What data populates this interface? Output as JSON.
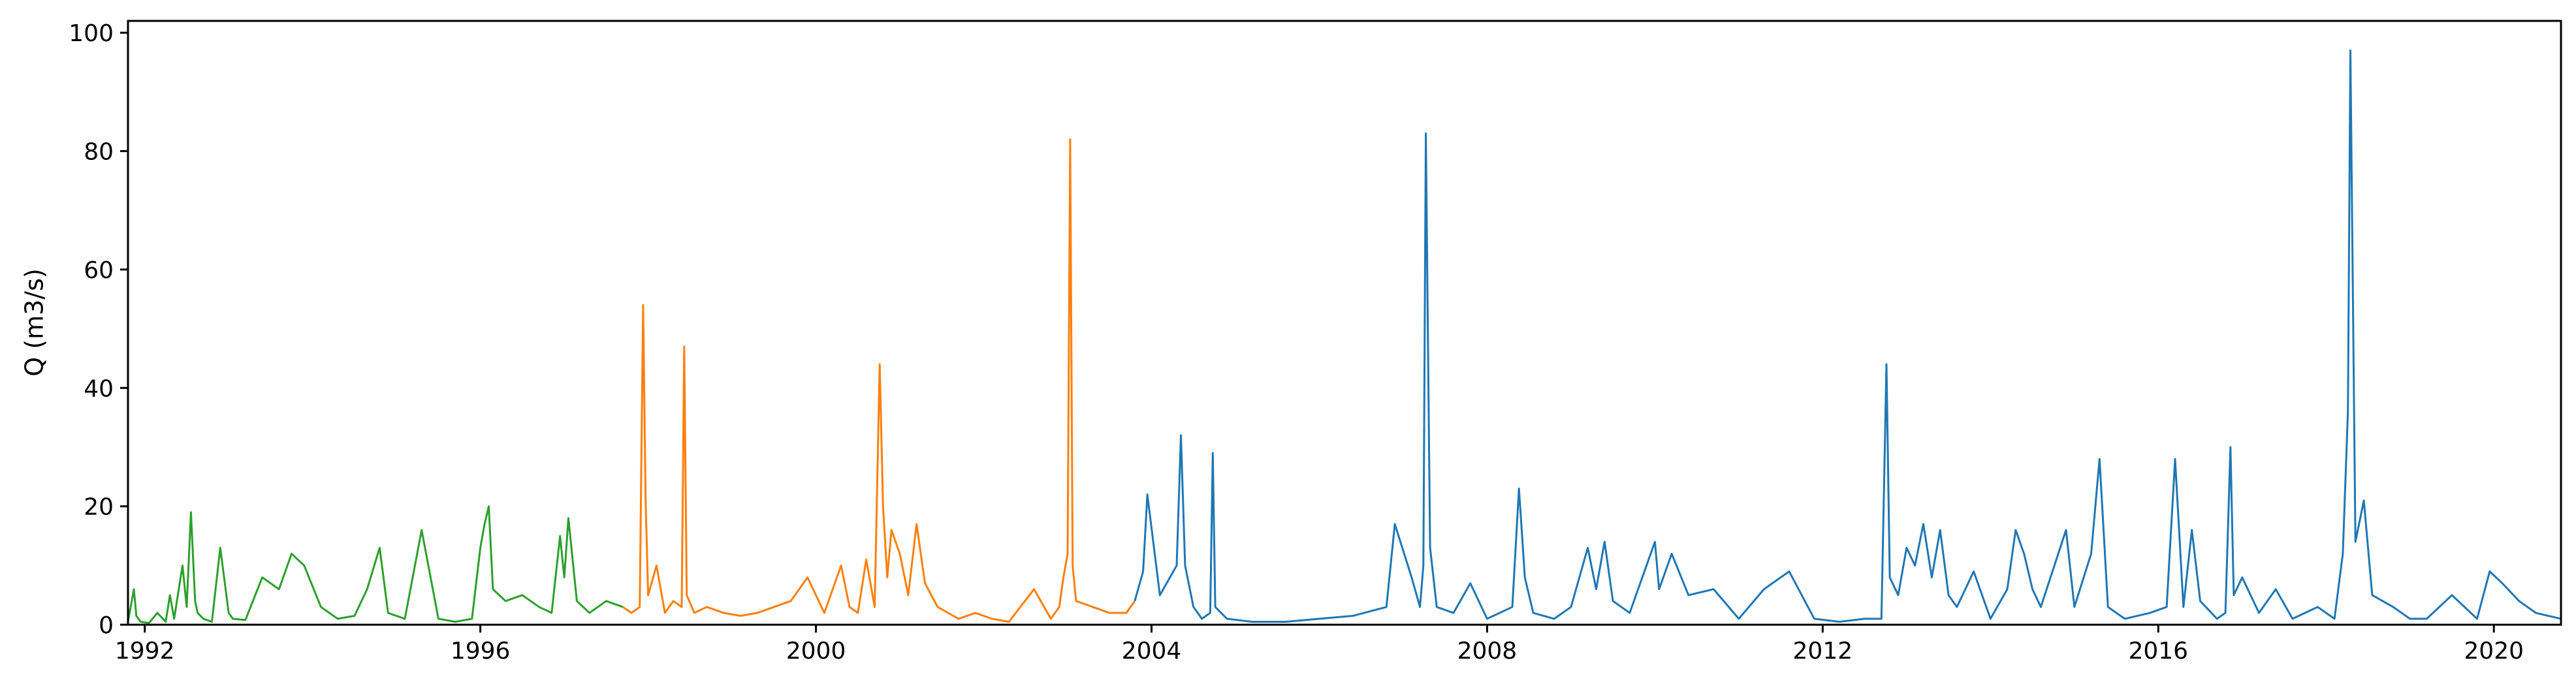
{
  "chart_data": {
    "type": "line",
    "title": "",
    "xlabel": "",
    "ylabel": "Q (m3/s)",
    "xlim": [
      1991.8,
      2020.8
    ],
    "ylim": [
      0,
      102
    ],
    "x_ticks": [
      1992,
      1996,
      2000,
      2004,
      2008,
      2012,
      2016,
      2020
    ],
    "x_tick_labels": [
      "1992",
      "1996",
      "2000",
      "2004",
      "2008",
      "2012",
      "2016",
      "2020"
    ],
    "y_ticks": [
      0,
      20,
      40,
      60,
      80,
      100
    ],
    "y_tick_labels": [
      "0",
      "20",
      "40",
      "60",
      "80",
      "100"
    ],
    "grid": false,
    "legend": "none",
    "series": [
      {
        "color": "#2ca02c",
        "x": [
          1991.8,
          1991.87,
          1991.9,
          1991.95,
          1992.05,
          1992.15,
          1992.25,
          1992.3,
          1992.35,
          1992.45,
          1992.5,
          1992.55,
          1992.6,
          1992.63,
          1992.7,
          1992.8,
          1992.9,
          1993.0,
          1993.05,
          1993.2,
          1993.4,
          1993.6,
          1993.75,
          1993.9,
          1994.1,
          1994.3,
          1994.5,
          1994.65,
          1994.8,
          1994.9,
          1995.1,
          1995.3,
          1995.5,
          1995.7,
          1995.9,
          1996.0,
          1996.05,
          1996.1,
          1996.15,
          1996.3,
          1996.5,
          1996.7,
          1996.85,
          1996.95,
          1997.0,
          1997.05,
          1997.15,
          1997.3,
          1997.5,
          1997.7
        ],
        "y": [
          0.5,
          6,
          1.5,
          0.5,
          0.3,
          2,
          0.5,
          5,
          1,
          10,
          3,
          19,
          4,
          2,
          1,
          0.5,
          13,
          2,
          1,
          0.8,
          8,
          6,
          12,
          10,
          3,
          1,
          1.5,
          6,
          13,
          2,
          1,
          16,
          1,
          0.5,
          1,
          13,
          17,
          20,
          6,
          4,
          5,
          3,
          2,
          15,
          8,
          18,
          4,
          2,
          4,
          3
        ]
      },
      {
        "color": "#ff7f0e",
        "x": [
          1997.7,
          1997.8,
          1997.9,
          1997.94,
          1997.97,
          1998.0,
          1998.1,
          1998.2,
          1998.3,
          1998.4,
          1998.43,
          1998.46,
          1998.55,
          1998.7,
          1998.9,
          1999.1,
          1999.3,
          1999.5,
          1999.7,
          1999.9,
          2000.1,
          2000.3,
          2000.4,
          2000.5,
          2000.6,
          2000.7,
          2000.76,
          2000.8,
          2000.85,
          2000.9,
          2001.0,
          2001.1,
          2001.2,
          2001.3,
          2001.45,
          2001.7,
          2001.9,
          2002.1,
          2002.3,
          2002.6,
          2002.8,
          2002.9,
          2002.95,
          2003.0,
          2003.03,
          2003.06,
          2003.1,
          2003.3,
          2003.5,
          2003.7,
          2003.8
        ],
        "y": [
          3,
          2,
          3,
          54,
          21,
          5,
          10,
          2,
          4,
          3,
          47,
          5,
          2,
          3,
          2,
          1.5,
          2,
          3,
          4,
          8,
          2,
          10,
          3,
          2,
          11,
          3,
          44,
          20,
          8,
          16,
          12,
          5,
          17,
          7,
          3,
          1,
          2,
          1,
          0.5,
          6,
          1,
          3,
          8,
          12,
          82,
          10,
          4,
          3,
          2,
          2,
          4
        ]
      },
      {
        "color": "#1f77b4",
        "x": [
          2003.8,
          2003.9,
          2003.95,
          2004.1,
          2004.3,
          2004.35,
          2004.4,
          2004.5,
          2004.6,
          2004.7,
          2004.73,
          2004.76,
          2004.9,
          2005.2,
          2005.6,
          2006.0,
          2006.4,
          2006.8,
          2006.9,
          2007.1,
          2007.2,
          2007.24,
          2007.27,
          2007.32,
          2007.4,
          2007.6,
          2007.8,
          2008.0,
          2008.3,
          2008.38,
          2008.45,
          2008.55,
          2008.8,
          2009.0,
          2009.2,
          2009.3,
          2009.4,
          2009.5,
          2009.7,
          2010.0,
          2010.05,
          2010.2,
          2010.4,
          2010.7,
          2011.0,
          2011.3,
          2011.6,
          2011.9,
          2012.2,
          2012.5,
          2012.7,
          2012.76,
          2012.8,
          2012.9,
          2013.0,
          2013.1,
          2013.2,
          2013.3,
          2013.4,
          2013.5,
          2013.6,
          2013.8,
          2014.0,
          2014.2,
          2014.3,
          2014.4,
          2014.5,
          2014.6,
          2014.9,
          2015.0,
          2015.2,
          2015.3,
          2015.4,
          2015.6,
          2015.9,
          2016.1,
          2016.2,
          2016.3,
          2016.4,
          2016.5,
          2016.7,
          2016.8,
          2016.86,
          2016.9,
          2017.0,
          2017.2,
          2017.4,
          2017.6,
          2017.9,
          2018.1,
          2018.2,
          2018.26,
          2018.29,
          2018.35,
          2018.45,
          2018.55,
          2018.8,
          2019.0,
          2019.2,
          2019.5,
          2019.8,
          2019.95,
          2020.1,
          2020.3,
          2020.5,
          2020.8
        ],
        "y": [
          4,
          9,
          22,
          5,
          10,
          32,
          10,
          3,
          1,
          2,
          29,
          3,
          1,
          0.5,
          0.5,
          1,
          1.5,
          3,
          17,
          8,
          3,
          10,
          83,
          13,
          3,
          2,
          7,
          1,
          3,
          23,
          8,
          2,
          1,
          3,
          13,
          6,
          14,
          4,
          2,
          14,
          6,
          12,
          5,
          6,
          1,
          6,
          9,
          1,
          0.5,
          1,
          1,
          44,
          8,
          5,
          13,
          10,
          17,
          8,
          16,
          5,
          3,
          9,
          1,
          6,
          16,
          12,
          6,
          3,
          16,
          3,
          12,
          28,
          3,
          1,
          2,
          3,
          28,
          3,
          16,
          4,
          1,
          2,
          30,
          5,
          8,
          2,
          6,
          1,
          3,
          1,
          12,
          36,
          97,
          14,
          21,
          5,
          3,
          1,
          1,
          5,
          1,
          9,
          7,
          4,
          2,
          1
        ]
      }
    ]
  }
}
